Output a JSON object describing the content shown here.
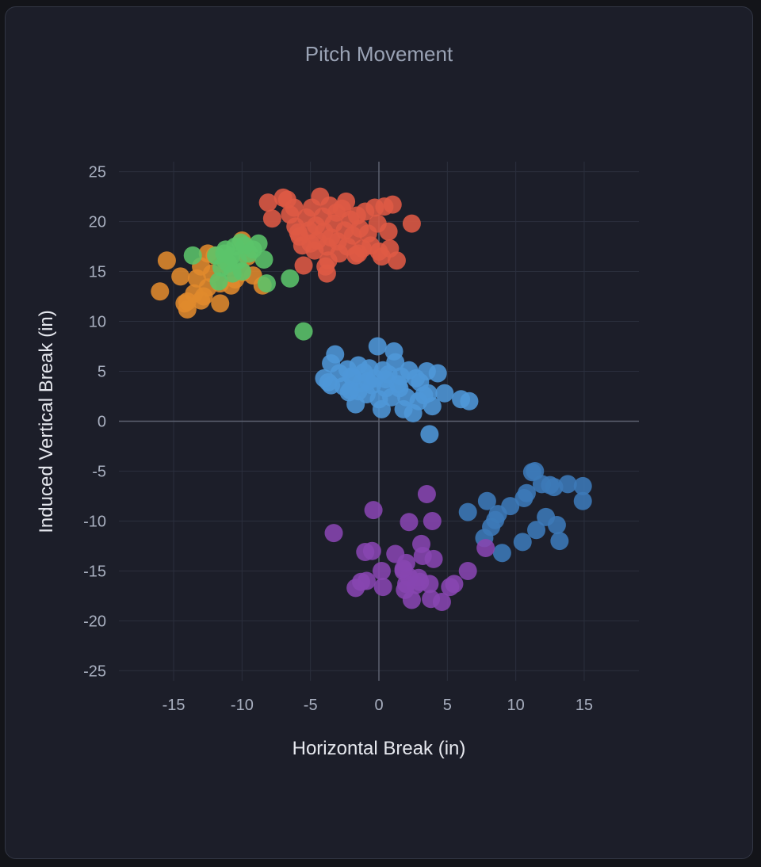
{
  "chart_data": {
    "type": "scatter",
    "title": "Pitch Movement",
    "xlabel": "Horizontal Break (in)",
    "ylabel": "Induced Vertical Break (in)",
    "xlim": [
      -19,
      19
    ],
    "ylim": [
      -26,
      26
    ],
    "xticks": [
      "-15",
      "-10",
      "-5",
      "0",
      "5",
      "10",
      "15"
    ],
    "xtick_values": [
      -15,
      -10,
      -5,
      0,
      5,
      10,
      15
    ],
    "yticks": [
      "25",
      "20",
      "15",
      "10",
      "5",
      "0",
      "-5",
      "-10",
      "-15",
      "-20",
      "-25"
    ],
    "ytick_values": [
      25,
      20,
      15,
      10,
      5,
      0,
      -5,
      -10,
      -15,
      -20,
      -25
    ],
    "grid": true,
    "series": [
      {
        "name": "Orange cluster",
        "color": "#e08a2c",
        "points": [
          [
            -16,
            13
          ],
          [
            -15.5,
            16.1
          ],
          [
            -14.5,
            14.5
          ],
          [
            -14.2,
            11.8
          ],
          [
            -14,
            11.2
          ],
          [
            -13.5,
            12.8
          ],
          [
            -13,
            12.1
          ],
          [
            -13.3,
            14.3
          ],
          [
            -13,
            15.5
          ],
          [
            -12.5,
            16.8
          ],
          [
            -12.5,
            13.4
          ],
          [
            -12,
            16.6
          ],
          [
            -11.6,
            11.8
          ],
          [
            -11.6,
            13.8
          ],
          [
            -11.2,
            16
          ],
          [
            -10.8,
            13.6
          ],
          [
            -10.5,
            14.2
          ],
          [
            -10,
            18.1
          ],
          [
            -10,
            14.9
          ],
          [
            -9.2,
            14.6
          ],
          [
            -8.5,
            13.6
          ],
          [
            -12.8,
            12.5
          ],
          [
            -14,
            12
          ],
          [
            -11,
            15.5
          ],
          [
            -9.6,
            16.5
          ],
          [
            -12.2,
            14.8
          ]
        ]
      },
      {
        "name": "Green cluster",
        "color": "#5bc46a",
        "points": [
          [
            -13.6,
            16.6
          ],
          [
            -11.9,
            16.6
          ],
          [
            -11.5,
            15.4
          ],
          [
            -11.2,
            17.2
          ],
          [
            -11,
            15.8
          ],
          [
            -10.8,
            16.5
          ],
          [
            -10.5,
            17.5
          ],
          [
            -10.3,
            16.1
          ],
          [
            -10,
            15
          ],
          [
            -9.8,
            17.6
          ],
          [
            -9.5,
            16.8
          ],
          [
            -9.2,
            17.2
          ],
          [
            -8.8,
            17.8
          ],
          [
            -8.4,
            16.2
          ],
          [
            -8.2,
            13.8
          ],
          [
            -11.7,
            14
          ],
          [
            -11.3,
            16.8
          ],
          [
            -10.7,
            14.8
          ],
          [
            -10.1,
            17.9
          ],
          [
            -6.5,
            14.3
          ],
          [
            -5.5,
            9
          ]
        ]
      },
      {
        "name": "Red cluster",
        "color": "#df5a44",
        "points": [
          [
            -8.1,
            21.9
          ],
          [
            -7.8,
            20.3
          ],
          [
            -7,
            22.4
          ],
          [
            -6.7,
            22.2
          ],
          [
            -6.5,
            20.7
          ],
          [
            -6.2,
            21.4
          ],
          [
            -5.9,
            18.9
          ],
          [
            -5.8,
            18.5
          ],
          [
            -5.6,
            17.6
          ],
          [
            -5.3,
            20.4
          ],
          [
            -5.1,
            19.1
          ],
          [
            -5,
            17.8
          ],
          [
            -4.9,
            21.4
          ],
          [
            -4.6,
            19.6
          ],
          [
            -4.5,
            18.1
          ],
          [
            -4.3,
            22.5
          ],
          [
            -4.1,
            20.5
          ],
          [
            -4,
            19
          ],
          [
            -3.9,
            15.5
          ],
          [
            -3.8,
            14.8
          ],
          [
            -3.8,
            17.5
          ],
          [
            -3.6,
            21.6
          ],
          [
            -3.5,
            18.4
          ],
          [
            -3.3,
            19.8
          ],
          [
            -3.1,
            20.9
          ],
          [
            -3,
            18
          ],
          [
            -2.9,
            16.8
          ],
          [
            -2.7,
            21.3
          ],
          [
            -2.5,
            19.1
          ],
          [
            -2.3,
            17.5
          ],
          [
            -2.1,
            20.2
          ],
          [
            -1.9,
            18.6
          ],
          [
            -1.7,
            16.6
          ],
          [
            -1.6,
            20.6
          ],
          [
            -1.4,
            19.3
          ],
          [
            -1.2,
            17.3
          ],
          [
            -1,
            21
          ],
          [
            -0.8,
            18.8
          ],
          [
            -0.6,
            17.6
          ],
          [
            -0.3,
            21.4
          ],
          [
            -0.1,
            19.8
          ],
          [
            0,
            17
          ],
          [
            0.2,
            16.5
          ],
          [
            0.4,
            21.5
          ],
          [
            0.7,
            19
          ],
          [
            0.8,
            17.3
          ],
          [
            1,
            21.7
          ],
          [
            1.3,
            16.1
          ],
          [
            2.4,
            19.8
          ],
          [
            -5.5,
            15.6
          ],
          [
            -3.7,
            16.1
          ],
          [
            -6.1,
            19.5
          ],
          [
            -4.7,
            17.1
          ],
          [
            -2.4,
            22
          ],
          [
            -1.5,
            16.8
          ]
        ]
      },
      {
        "name": "Light blue cluster",
        "color": "#4e97d8",
        "points": [
          [
            -4,
            4.3
          ],
          [
            -3.7,
            3.9
          ],
          [
            -3.5,
            5.8
          ],
          [
            -3.2,
            6.7
          ],
          [
            -2.9,
            4.8
          ],
          [
            -2.6,
            3.5
          ],
          [
            -2.3,
            5.2
          ],
          [
            -2.1,
            3.1
          ],
          [
            -1.9,
            4.4
          ],
          [
            -1.7,
            1.7
          ],
          [
            -1.5,
            5.6
          ],
          [
            -1.3,
            3.8
          ],
          [
            -1.1,
            4.9
          ],
          [
            -0.9,
            2.7
          ],
          [
            -0.7,
            5.3
          ],
          [
            -0.5,
            3.6
          ],
          [
            -0.3,
            4.3
          ],
          [
            -0.1,
            7.5
          ],
          [
            0,
            2.2
          ],
          [
            0.2,
            1.2
          ],
          [
            0.3,
            5.1
          ],
          [
            0.5,
            3.3
          ],
          [
            0.7,
            4.7
          ],
          [
            0.9,
            2.4
          ],
          [
            1.1,
            7
          ],
          [
            1.2,
            5.9
          ],
          [
            1.4,
            3.7
          ],
          [
            1.6,
            4.5
          ],
          [
            1.8,
            1.2
          ],
          [
            2,
            2.4
          ],
          [
            2.2,
            5.1
          ],
          [
            2.5,
            0.8
          ],
          [
            2.7,
            4.3
          ],
          [
            3,
            3.9
          ],
          [
            3.3,
            2.6
          ],
          [
            3.5,
            5
          ],
          [
            3.7,
            -1.3
          ],
          [
            3.9,
            1.5
          ],
          [
            4.3,
            4.8
          ],
          [
            4.8,
            2.8
          ],
          [
            6,
            2.2
          ],
          [
            6.6,
            2
          ],
          [
            -2,
            4.5
          ],
          [
            -0.8,
            4
          ],
          [
            0.5,
            4.2
          ],
          [
            1.5,
            3.3
          ],
          [
            -1.5,
            3
          ],
          [
            2.9,
            2
          ],
          [
            3.6,
            2.8
          ],
          [
            -3.5,
            3.6
          ],
          [
            -2.2,
            2.9
          ]
        ]
      },
      {
        "name": "Dark blue cluster",
        "color": "#3c7ab8",
        "points": [
          [
            6.5,
            -9.1
          ],
          [
            7.7,
            -11.7
          ],
          [
            7.9,
            -8
          ],
          [
            8.2,
            -10.6
          ],
          [
            8.5,
            -9.9
          ],
          [
            8.7,
            -9.3
          ],
          [
            9,
            -13.2
          ],
          [
            9.6,
            -8.5
          ],
          [
            10.5,
            -12.1
          ],
          [
            10.6,
            -7.7
          ],
          [
            10.8,
            -7.2
          ],
          [
            11.2,
            -5.1
          ],
          [
            11.4,
            -5
          ],
          [
            11.5,
            -10.9
          ],
          [
            11.9,
            -6.3
          ],
          [
            12.2,
            -9.6
          ],
          [
            12.5,
            -6.4
          ],
          [
            12.8,
            -6.6
          ],
          [
            13,
            -10.4
          ],
          [
            13.2,
            -12
          ],
          [
            13.8,
            -6.3
          ],
          [
            14.9,
            -6.5
          ],
          [
            14.9,
            -8
          ]
        ]
      },
      {
        "name": "Purple cluster",
        "color": "#8846b0",
        "points": [
          [
            -3.3,
            -11.2
          ],
          [
            -1.7,
            -16.7
          ],
          [
            -1,
            -13.1
          ],
          [
            -0.9,
            -16
          ],
          [
            -0.4,
            -8.9
          ],
          [
            -0.5,
            -13
          ],
          [
            0.2,
            -15
          ],
          [
            0.3,
            -16.6
          ],
          [
            1.2,
            -13.3
          ],
          [
            1.8,
            -15
          ],
          [
            1.9,
            -16.9
          ],
          [
            2,
            -14.2
          ],
          [
            2.2,
            -15.6
          ],
          [
            2.2,
            -10.1
          ],
          [
            2.4,
            -17.9
          ],
          [
            2.7,
            -16.4
          ],
          [
            3,
            -16.1
          ],
          [
            3.1,
            -12.3
          ],
          [
            3.2,
            -13.5
          ],
          [
            3.5,
            -7.3
          ],
          [
            3.7,
            -16.3
          ],
          [
            3.8,
            -17.8
          ],
          [
            3.9,
            -10
          ],
          [
            4,
            -13.8
          ],
          [
            4.6,
            -18.1
          ],
          [
            5.2,
            -16.6
          ],
          [
            5.5,
            -16.3
          ],
          [
            6.5,
            -15
          ],
          [
            7.8,
            -12.7
          ],
          [
            2,
            -16.3
          ],
          [
            2.9,
            -15.7
          ],
          [
            1.8,
            -14.8
          ],
          [
            -1.3,
            -16.1
          ]
        ]
      }
    ]
  }
}
